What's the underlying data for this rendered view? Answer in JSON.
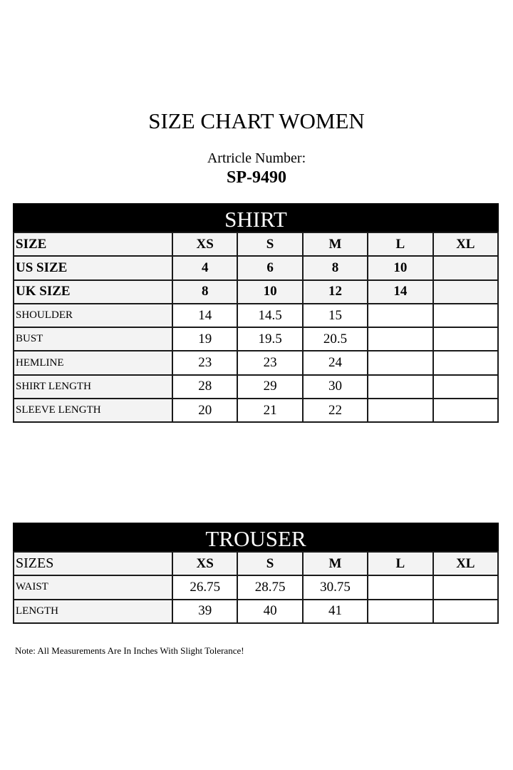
{
  "title": "SIZE CHART WOMEN",
  "article_label": "Artricle Number:",
  "article_number": "SP-9490",
  "shirt": {
    "heading": "SHIRT",
    "rows": [
      {
        "label": "SIZE",
        "values": [
          "XS",
          "S",
          "M",
          "L",
          "XL"
        ]
      },
      {
        "label": "US SIZE",
        "values": [
          "4",
          "6",
          "8",
          "10",
          ""
        ]
      },
      {
        "label": "UK SIZE",
        "values": [
          "8",
          "10",
          "12",
          "14",
          ""
        ]
      },
      {
        "label": "SHOULDER",
        "values": [
          "14",
          "14.5",
          "15",
          "",
          ""
        ]
      },
      {
        "label": "BUST",
        "values": [
          "19",
          "19.5",
          "20.5",
          "",
          ""
        ]
      },
      {
        "label": "HEMLINE",
        "values": [
          "23",
          "23",
          "24",
          "",
          ""
        ]
      },
      {
        "label": "SHIRT LENGTH",
        "values": [
          "28",
          "29",
          "30",
          "",
          ""
        ]
      },
      {
        "label": "SLEEVE LENGTH",
        "values": [
          "20",
          "21",
          "22",
          "",
          ""
        ]
      }
    ]
  },
  "trouser": {
    "heading": "TROUSER",
    "rows": [
      {
        "label": "SIZES",
        "values": [
          "XS",
          "S",
          "M",
          "L",
          "XL"
        ]
      },
      {
        "label": "WAIST",
        "values": [
          "26.75",
          "28.75",
          "30.75",
          "",
          ""
        ]
      },
      {
        "label": "LENGTH",
        "values": [
          "39",
          "40",
          "41",
          "",
          ""
        ]
      }
    ]
  },
  "note": "Note: All Measurements Are In Inches With Slight Tolerance!"
}
